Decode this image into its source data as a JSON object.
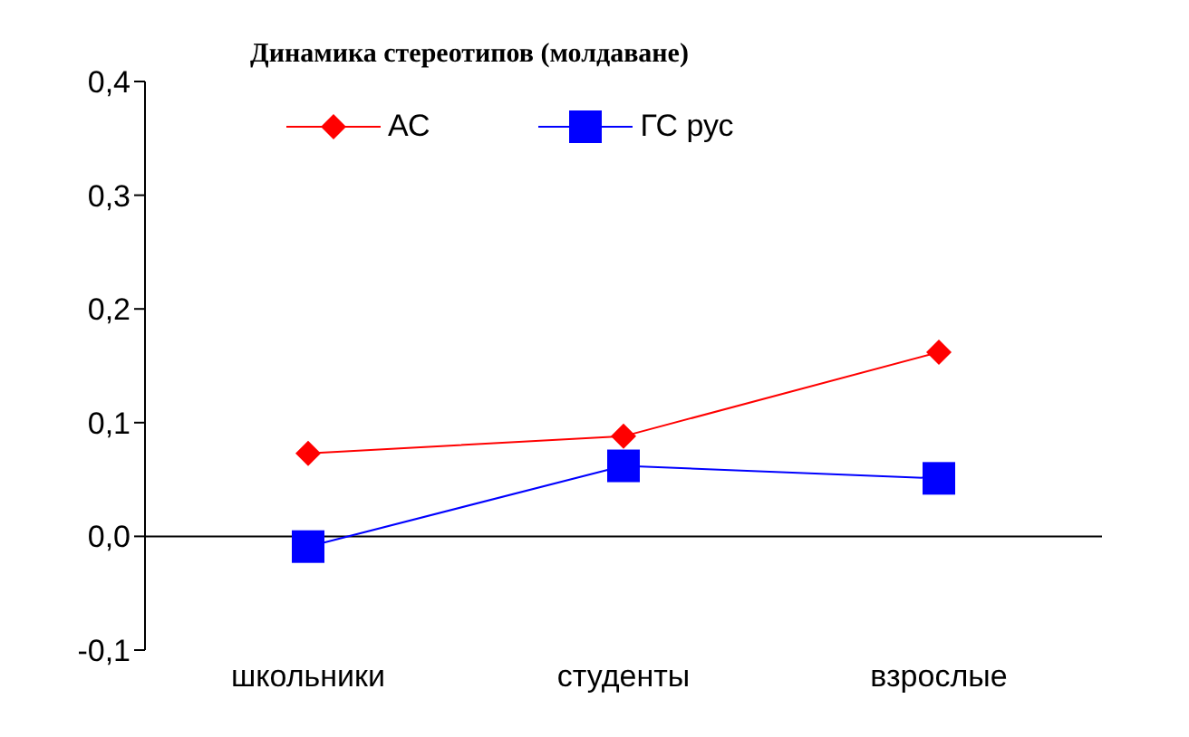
{
  "chart_data": {
    "type": "line",
    "title": "Динамика стереотипов (молдаване)",
    "categories": [
      "школьники",
      "студенты",
      "взрослые"
    ],
    "series": [
      {
        "name": "АС",
        "color": "#ff0000",
        "marker": "diamond",
        "values": [
          0.073,
          0.088,
          0.162
        ]
      },
      {
        "name": "ГС рус",
        "color": "#0000ff",
        "marker": "square",
        "values": [
          -0.009,
          0.062,
          0.051
        ]
      }
    ],
    "ylim": [
      -0.1,
      0.4
    ],
    "yticks": [
      {
        "value": -0.1,
        "label": "-0,1"
      },
      {
        "value": 0,
        "label": "0,0"
      },
      {
        "value": 0.1,
        "label": "0,1"
      },
      {
        "value": 0.2,
        "label": "0,2"
      },
      {
        "value": 0.3,
        "label": "0,3"
      },
      {
        "value": 0.4,
        "label": "0,4"
      }
    ],
    "ref_lines": [
      {
        "axis": "y",
        "value": 0,
        "color": "#000000"
      }
    ],
    "grid": false,
    "legend": "top left"
  }
}
